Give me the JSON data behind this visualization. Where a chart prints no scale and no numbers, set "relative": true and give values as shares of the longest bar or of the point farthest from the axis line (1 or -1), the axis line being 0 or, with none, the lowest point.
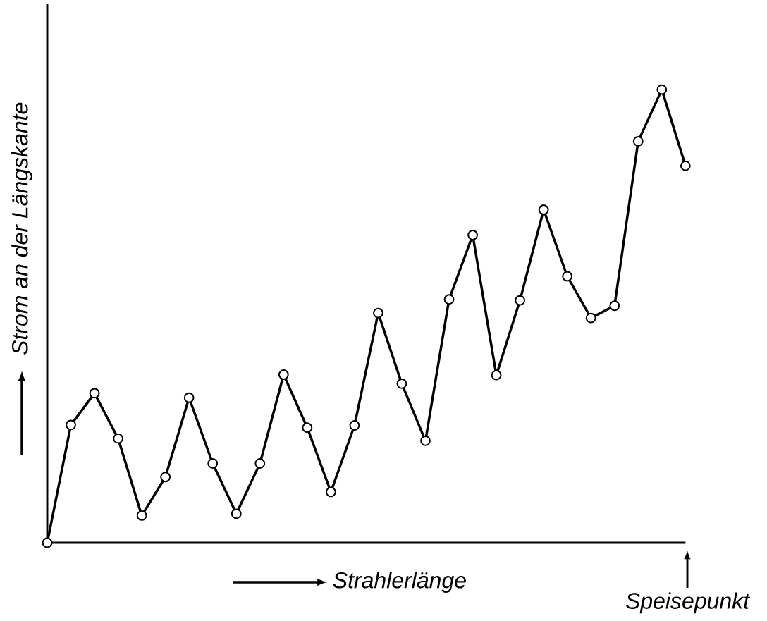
{
  "chart_data": {
    "type": "line",
    "relative": true,
    "xlabel": "Strahlerlänge",
    "ylabel": "Strom an der Längskante",
    "annotations": [
      "Speisepunkt"
    ],
    "categories": [
      null,
      null,
      null,
      null,
      null,
      null,
      null,
      null,
      null,
      null,
      null,
      null,
      null,
      null,
      null,
      null,
      null,
      null,
      null,
      null,
      null,
      null,
      null,
      null,
      null,
      null,
      null,
      null
    ],
    "marker": "circle",
    "line_style": "solid",
    "series": [
      {
        "color": "#000000",
        "values": [
          0,
          0.26,
          0.33,
          0.23,
          0.06,
          0.145,
          0.32,
          0.175,
          0.064,
          0.175,
          0.371,
          0.254,
          0.112,
          0.259,
          0.507,
          0.351,
          0.225,
          0.537,
          0.679,
          0.37,
          0.535,
          0.735,
          0.588,
          0.496,
          0.523,
          0.886,
          1,
          0.832
        ]
      }
    ]
  }
}
